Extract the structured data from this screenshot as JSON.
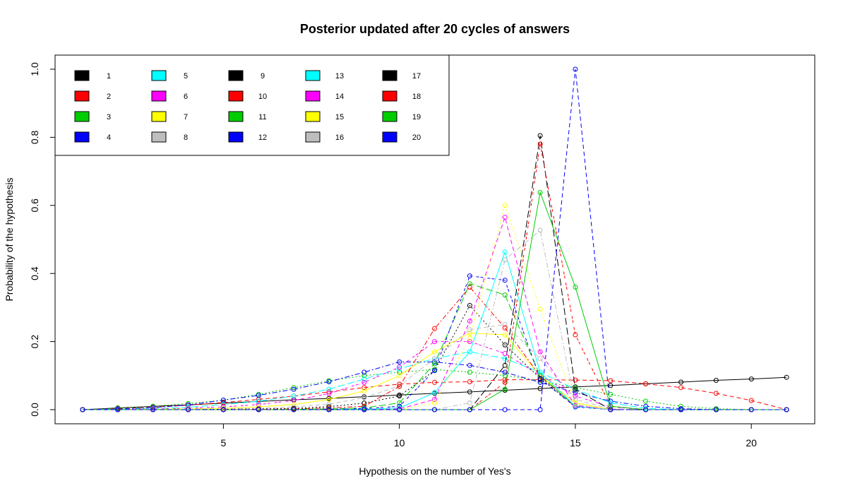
{
  "chart_data": {
    "type": "line",
    "title": "Posterior updated after 20 cycles of answers",
    "xlabel": "Hypothesis on the number of Yes's",
    "ylabel": "Probability of the hypothesis",
    "xlim": [
      1,
      21
    ],
    "ylim": [
      0,
      1.0
    ],
    "x_ticks": [
      "5",
      "10",
      "15",
      "20"
    ],
    "y_ticks": [
      "0.0",
      "0.2",
      "0.4",
      "0.6",
      "0.8",
      "1.0"
    ],
    "grid": false,
    "legend_position": "top-left",
    "palette": [
      "#000000",
      "#ff0000",
      "#00cd00",
      "#0000ff",
      "#00ffff",
      "#ff00ff",
      "#ffff00",
      "#bebebe"
    ],
    "x": [
      1,
      2,
      3,
      4,
      5,
      6,
      7,
      8,
      9,
      10,
      11,
      12,
      13,
      14,
      15,
      16,
      17,
      18,
      19,
      20,
      21
    ],
    "series": [
      {
        "name": "1",
        "values": [
          0,
          0.005,
          0.01,
          0.014,
          0.019,
          0.024,
          0.029,
          0.033,
          0.038,
          0.043,
          0.048,
          0.052,
          0.057,
          0.062,
          0.067,
          0.071,
          0.076,
          0.081,
          0.086,
          0.09,
          0.095
        ]
      },
      {
        "name": "2",
        "values": [
          0,
          0.003,
          0.007,
          0.013,
          0.021,
          0.03,
          0.04,
          0.052,
          0.065,
          0.075,
          0.08,
          0.082,
          0.088,
          0.088,
          0.087,
          0.085,
          0.076,
          0.065,
          0.048,
          0.027,
          0
        ]
      },
      {
        "name": "3",
        "values": [
          0,
          0.004,
          0.01,
          0.018,
          0.028,
          0.045,
          0.065,
          0.085,
          0.1,
          0.11,
          0.118,
          0.11,
          0.1,
          0.085,
          0.065,
          0.045,
          0.025,
          0.01,
          0.003,
          0,
          0
        ]
      },
      {
        "name": "4",
        "values": [
          0,
          0.002,
          0.006,
          0.014,
          0.028,
          0.042,
          0.06,
          0.082,
          0.11,
          0.14,
          0.14,
          0.13,
          0.11,
          0.08,
          0.05,
          0.025,
          0.01,
          0.003,
          0,
          0,
          0
        ]
      },
      {
        "name": "5",
        "values": [
          0,
          0.001,
          0.003,
          0.007,
          0.015,
          0.025,
          0.04,
          0.06,
          0.09,
          0.12,
          0.15,
          0.17,
          0.15,
          0.11,
          0.06,
          0.02,
          0.004,
          0,
          0,
          0,
          0
        ]
      },
      {
        "name": "6",
        "values": [
          0,
          0.001,
          0.002,
          0.004,
          0.008,
          0.015,
          0.027,
          0.047,
          0.08,
          0.125,
          0.2,
          0.2,
          0.165,
          0.1,
          0.04,
          0.008,
          0,
          0,
          0,
          0,
          0
        ]
      },
      {
        "name": "7",
        "values": [
          0,
          0,
          0.001,
          0.002,
          0.004,
          0.008,
          0.015,
          0.03,
          0.055,
          0.1,
          0.17,
          0.225,
          0.22,
          0.1,
          0.02,
          0,
          0,
          0,
          0,
          0,
          0
        ]
      },
      {
        "name": "8",
        "values": [
          0,
          0,
          0,
          0.001,
          0.002,
          0.004,
          0.008,
          0.016,
          0.035,
          0.07,
          0.15,
          0.235,
          0.25,
          0.15,
          0.03,
          0.002,
          0,
          0,
          0,
          0,
          0
        ]
      },
      {
        "name": "9",
        "values": [
          0,
          0,
          0,
          0,
          0.001,
          0.002,
          0.004,
          0.009,
          0.019,
          0.04,
          0.115,
          0.306,
          0.19,
          0.092,
          0.01,
          0,
          0,
          0,
          0,
          0,
          0
        ]
      },
      {
        "name": "10",
        "values": [
          0,
          0,
          0,
          0,
          0,
          0.001,
          0.002,
          0.005,
          0.01,
          0.068,
          0.238,
          0.36,
          0.24,
          0.098,
          0.01,
          0,
          0,
          0,
          0,
          0,
          0
        ]
      },
      {
        "name": "11",
        "values": [
          0,
          0,
          0,
          0,
          0,
          0,
          0.001,
          0.002,
          0.005,
          0.02,
          0.135,
          0.37,
          0.337,
          0.1,
          0.01,
          0,
          0,
          0,
          0,
          0,
          0
        ]
      },
      {
        "name": "12",
        "values": [
          0,
          0,
          0,
          0,
          0,
          0,
          0,
          0.001,
          0.003,
          0.01,
          0.115,
          0.393,
          0.38,
          0.09,
          0.008,
          0,
          0,
          0,
          0,
          0,
          0
        ]
      },
      {
        "name": "13",
        "values": [
          0,
          0,
          0,
          0,
          0,
          0,
          0,
          0,
          0.001,
          0.005,
          0.05,
          0.17,
          0.463,
          0.11,
          0.01,
          0,
          0,
          0,
          0,
          0,
          0
        ]
      },
      {
        "name": "14",
        "values": [
          0,
          0,
          0,
          0,
          0,
          0,
          0,
          0,
          0,
          0.002,
          0.03,
          0.26,
          0.565,
          0.17,
          0.012,
          0,
          0,
          0,
          0,
          0,
          0
        ]
      },
      {
        "name": "15",
        "values": [
          0,
          0,
          0,
          0,
          0,
          0,
          0,
          0,
          0,
          0,
          0.02,
          0.21,
          0.6,
          0.295,
          0.02,
          0,
          0,
          0,
          0,
          0,
          0
        ]
      },
      {
        "name": "16",
        "values": [
          0,
          0,
          0,
          0,
          0,
          0,
          0,
          0,
          0,
          0,
          0,
          0.02,
          0.44,
          0.527,
          0.015,
          0,
          0,
          0,
          0,
          0,
          0
        ]
      },
      {
        "name": "17",
        "values": [
          0,
          0,
          0,
          0,
          0,
          0,
          0,
          0,
          0,
          0,
          0,
          0,
          0.13,
          0.805,
          0.06,
          0,
          0,
          0,
          0,
          0,
          0
        ]
      },
      {
        "name": "18",
        "values": [
          0,
          0,
          0,
          0,
          0,
          0,
          0,
          0,
          0,
          0,
          0,
          0,
          0.08,
          0.78,
          0.22,
          0.01,
          0,
          0,
          0,
          0,
          0
        ]
      },
      {
        "name": "19",
        "values": [
          0,
          0,
          0,
          0,
          0,
          0,
          0,
          0,
          0,
          0,
          0,
          0,
          0.06,
          0.638,
          0.36,
          0.01,
          0,
          0,
          0,
          0,
          0
        ]
      },
      {
        "name": "20",
        "values": [
          0,
          0,
          0,
          0,
          0,
          0,
          0,
          0,
          0,
          0,
          0,
          0,
          0,
          0,
          1.0,
          0,
          0,
          0,
          0,
          0,
          0
        ]
      }
    ]
  }
}
